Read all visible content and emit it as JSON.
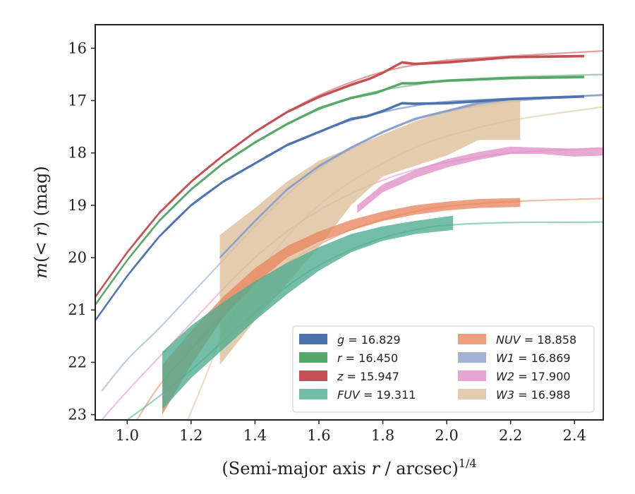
{
  "chart_data": {
    "type": "line",
    "xlabel": "(Semi-major axis r / arcsec)^(1/4)",
    "xlabel_main": "(Semi-major axis ",
    "xlabel_var": "r",
    "xlabel_rest": " / arcsec)",
    "xlabel_sup": "1/4",
    "ylabel": "m(<r) (mag)",
    "ylabel_main": "m",
    "ylabel_paren_open": "(",
    "ylabel_lt": "< ",
    "ylabel_var": "r",
    "ylabel_rest": ") (mag)",
    "xlim": [
      0.9,
      2.49
    ],
    "ylim": [
      23.1,
      15.55
    ],
    "y_inverted": true,
    "xticks": [
      "1.0",
      "1.2",
      "1.4",
      "1.6",
      "1.8",
      "2.0",
      "2.2",
      "2.4"
    ],
    "xtick_values": [
      1.0,
      1.2,
      1.4,
      1.6,
      1.8,
      2.0,
      2.2,
      2.4
    ],
    "yticks": [
      "16",
      "17",
      "18",
      "19",
      "20",
      "21",
      "22",
      "23"
    ],
    "ytick_values": [
      16,
      17,
      18,
      19,
      20,
      21,
      22,
      23
    ],
    "legend_position": "lower-right",
    "series": [
      {
        "band": "g",
        "value": "16.829",
        "color": "#4c72b0",
        "data_band": [
          [
            0.9,
            21.2
          ],
          [
            1.0,
            20.35
          ],
          [
            1.1,
            19.6
          ],
          [
            1.2,
            19.0
          ],
          [
            1.3,
            18.55
          ],
          [
            1.4,
            18.2
          ],
          [
            1.5,
            17.85
          ],
          [
            1.6,
            17.6
          ],
          [
            1.7,
            17.35
          ],
          [
            1.75,
            17.3
          ],
          [
            1.8,
            17.2
          ],
          [
            1.86,
            17.05
          ],
          [
            1.9,
            17.06
          ],
          [
            2.0,
            17.05
          ],
          [
            2.2,
            16.97
          ],
          [
            2.43,
            16.92
          ]
        ],
        "band_width": 0.05,
        "model": [
          [
            0.9,
            21.2
          ],
          [
            1.0,
            20.35
          ],
          [
            1.1,
            19.6
          ],
          [
            1.2,
            19.0
          ],
          [
            1.3,
            18.55
          ],
          [
            1.4,
            18.2
          ],
          [
            1.5,
            17.85
          ],
          [
            1.6,
            17.6
          ],
          [
            1.7,
            17.38
          ],
          [
            1.8,
            17.22
          ],
          [
            1.9,
            17.1
          ],
          [
            2.0,
            17.02
          ],
          [
            2.2,
            16.96
          ],
          [
            2.49,
            16.9
          ]
        ]
      },
      {
        "band": "r",
        "value": "16.450",
        "color": "#55a868",
        "data_band": [
          [
            0.9,
            20.9
          ],
          [
            1.0,
            20.05
          ],
          [
            1.1,
            19.3
          ],
          [
            1.2,
            18.7
          ],
          [
            1.3,
            18.2
          ],
          [
            1.4,
            17.8
          ],
          [
            1.5,
            17.45
          ],
          [
            1.6,
            17.15
          ],
          [
            1.7,
            16.95
          ],
          [
            1.78,
            16.85
          ],
          [
            1.86,
            16.67
          ],
          [
            1.9,
            16.67
          ],
          [
            2.0,
            16.62
          ],
          [
            2.2,
            16.57
          ],
          [
            2.43,
            16.55
          ]
        ],
        "band_width": 0.05,
        "model": [
          [
            0.9,
            20.9
          ],
          [
            1.0,
            20.05
          ],
          [
            1.1,
            19.3
          ],
          [
            1.2,
            18.7
          ],
          [
            1.3,
            18.2
          ],
          [
            1.4,
            17.8
          ],
          [
            1.5,
            17.45
          ],
          [
            1.6,
            17.17
          ],
          [
            1.7,
            16.95
          ],
          [
            1.8,
            16.8
          ],
          [
            1.9,
            16.7
          ],
          [
            2.0,
            16.62
          ],
          [
            2.2,
            16.55
          ],
          [
            2.49,
            16.5
          ]
        ]
      },
      {
        "band": "z",
        "value": "15.947",
        "color": "#c44e52",
        "data_band": [
          [
            0.9,
            20.75
          ],
          [
            1.0,
            19.9
          ],
          [
            1.1,
            19.15
          ],
          [
            1.2,
            18.55
          ],
          [
            1.3,
            18.05
          ],
          [
            1.4,
            17.6
          ],
          [
            1.5,
            17.22
          ],
          [
            1.6,
            16.93
          ],
          [
            1.7,
            16.7
          ],
          [
            1.76,
            16.58
          ],
          [
            1.8,
            16.47
          ],
          [
            1.86,
            16.27
          ],
          [
            1.9,
            16.3
          ],
          [
            2.0,
            16.27
          ],
          [
            2.2,
            16.17
          ],
          [
            2.43,
            16.15
          ]
        ],
        "band_width": 0.05,
        "model": [
          [
            0.9,
            20.75
          ],
          [
            1.0,
            19.9
          ],
          [
            1.1,
            19.15
          ],
          [
            1.2,
            18.55
          ],
          [
            1.3,
            18.05
          ],
          [
            1.4,
            17.6
          ],
          [
            1.5,
            17.22
          ],
          [
            1.6,
            16.9
          ],
          [
            1.7,
            16.65
          ],
          [
            1.8,
            16.45
          ],
          [
            1.9,
            16.32
          ],
          [
            2.0,
            16.23
          ],
          [
            2.2,
            16.15
          ],
          [
            2.49,
            16.05
          ]
        ]
      },
      {
        "band": "FUV",
        "value": "19.311",
        "color": "#4dac8f",
        "data_upper": [
          [
            1.11,
            21.8
          ],
          [
            1.2,
            21.3
          ],
          [
            1.3,
            20.85
          ],
          [
            1.4,
            20.45
          ],
          [
            1.5,
            20.1
          ],
          [
            1.6,
            19.8
          ],
          [
            1.7,
            19.55
          ],
          [
            1.8,
            19.4
          ],
          [
            1.9,
            19.3
          ],
          [
            2.02,
            19.2
          ]
        ],
        "data_lower": [
          [
            1.11,
            22.9
          ],
          [
            1.2,
            22.3
          ],
          [
            1.3,
            21.75
          ],
          [
            1.4,
            21.2
          ],
          [
            1.5,
            20.7
          ],
          [
            1.6,
            20.25
          ],
          [
            1.7,
            19.9
          ],
          [
            1.8,
            19.68
          ],
          [
            1.9,
            19.55
          ],
          [
            2.02,
            19.47
          ]
        ],
        "model": [
          [
            1.0,
            23.1
          ],
          [
            1.1,
            22.65
          ],
          [
            1.2,
            22.15
          ],
          [
            1.3,
            21.6
          ],
          [
            1.4,
            21.05
          ],
          [
            1.5,
            20.55
          ],
          [
            1.6,
            20.15
          ],
          [
            1.7,
            19.85
          ],
          [
            1.8,
            19.62
          ],
          [
            1.9,
            19.47
          ],
          [
            2.0,
            19.38
          ],
          [
            2.2,
            19.33
          ],
          [
            2.49,
            19.32
          ]
        ]
      },
      {
        "band": "NUV",
        "value": "18.858",
        "color": "#e8875f",
        "data_upper": [
          [
            1.11,
            22.05
          ],
          [
            1.2,
            21.4
          ],
          [
            1.3,
            20.75
          ],
          [
            1.4,
            20.2
          ],
          [
            1.5,
            19.78
          ],
          [
            1.6,
            19.5
          ],
          [
            1.7,
            19.28
          ],
          [
            1.8,
            19.12
          ],
          [
            1.9,
            19.0
          ],
          [
            2.0,
            18.93
          ],
          [
            2.1,
            18.88
          ],
          [
            2.23,
            18.86
          ]
        ],
        "data_lower": [
          [
            1.11,
            23.0
          ],
          [
            1.2,
            22.05
          ],
          [
            1.3,
            21.15
          ],
          [
            1.4,
            20.5
          ],
          [
            1.5,
            20.0
          ],
          [
            1.6,
            19.7
          ],
          [
            1.7,
            19.48
          ],
          [
            1.8,
            19.3
          ],
          [
            1.9,
            19.18
          ],
          [
            2.0,
            19.1
          ],
          [
            2.1,
            19.05
          ],
          [
            2.23,
            19.03
          ]
        ],
        "model": [
          [
            1.03,
            23.1
          ],
          [
            1.1,
            22.45
          ],
          [
            1.2,
            21.75
          ],
          [
            1.3,
            21.1
          ],
          [
            1.4,
            20.55
          ],
          [
            1.5,
            20.1
          ],
          [
            1.6,
            19.75
          ],
          [
            1.7,
            19.47
          ],
          [
            1.8,
            19.27
          ],
          [
            1.9,
            19.12
          ],
          [
            2.0,
            19.02
          ],
          [
            2.2,
            18.93
          ],
          [
            2.49,
            18.87
          ]
        ]
      },
      {
        "band": "W1",
        "value": "16.869",
        "color": "#8da0cb",
        "data_band": [
          [
            1.29,
            20.0
          ],
          [
            1.4,
            19.3
          ],
          [
            1.5,
            18.7
          ],
          [
            1.6,
            18.25
          ],
          [
            1.7,
            17.9
          ],
          [
            1.8,
            17.6
          ],
          [
            1.9,
            17.35
          ],
          [
            2.0,
            17.2
          ],
          [
            2.1,
            17.05
          ],
          [
            2.2,
            16.97
          ],
          [
            2.43,
            16.92
          ]
        ],
        "band_width": 0.05,
        "model": [
          [
            0.92,
            22.55
          ],
          [
            1.0,
            21.95
          ],
          [
            1.1,
            21.35
          ],
          [
            1.2,
            20.7
          ],
          [
            1.3,
            20.05
          ],
          [
            1.4,
            19.4
          ],
          [
            1.5,
            18.8
          ],
          [
            1.6,
            18.3
          ],
          [
            1.7,
            17.92
          ],
          [
            1.8,
            17.6
          ],
          [
            1.9,
            17.37
          ],
          [
            2.0,
            17.2
          ],
          [
            2.2,
            17.02
          ],
          [
            2.49,
            16.88
          ]
        ]
      },
      {
        "band": "W2",
        "value": "17.900",
        "color": "#e08fc7",
        "data_upper": [
          [
            1.72,
            19.0
          ],
          [
            1.8,
            18.6
          ],
          [
            1.9,
            18.33
          ],
          [
            2.0,
            18.12
          ],
          [
            2.1,
            17.98
          ],
          [
            2.2,
            17.88
          ],
          [
            2.3,
            17.9
          ],
          [
            2.4,
            17.92
          ],
          [
            2.49,
            17.9
          ]
        ],
        "data_lower": [
          [
            1.72,
            19.15
          ],
          [
            1.8,
            18.75
          ],
          [
            1.9,
            18.48
          ],
          [
            2.0,
            18.28
          ],
          [
            2.1,
            18.13
          ],
          [
            2.2,
            18.02
          ],
          [
            2.3,
            18.02
          ],
          [
            2.4,
            18.07
          ],
          [
            2.49,
            18.05
          ]
        ],
        "model": [
          [
            0.92,
            23.1
          ],
          [
            1.0,
            22.55
          ],
          [
            1.1,
            21.9
          ],
          [
            1.2,
            21.25
          ],
          [
            1.3,
            20.6
          ],
          [
            1.4,
            20.0
          ],
          [
            1.5,
            19.5
          ],
          [
            1.6,
            19.1
          ],
          [
            1.7,
            18.78
          ],
          [
            1.8,
            18.52
          ],
          [
            1.9,
            18.32
          ],
          [
            2.0,
            18.18
          ],
          [
            2.2,
            18.0
          ],
          [
            2.49,
            17.9
          ]
        ]
      },
      {
        "band": "W3",
        "value": "16.988",
        "color": "#dcbf98",
        "data_upper": [
          [
            1.29,
            19.57
          ],
          [
            1.4,
            19.05
          ],
          [
            1.5,
            18.55
          ],
          [
            1.6,
            18.15
          ],
          [
            1.7,
            17.9
          ],
          [
            1.8,
            17.65
          ],
          [
            1.9,
            17.4
          ],
          [
            2.0,
            17.2
          ],
          [
            2.1,
            17.0
          ],
          [
            2.23,
            16.95
          ]
        ],
        "data_lower": [
          [
            1.29,
            22.05
          ],
          [
            1.4,
            21.2
          ],
          [
            1.5,
            20.5
          ],
          [
            1.6,
            19.8
          ],
          [
            1.7,
            19.0
          ],
          [
            1.8,
            18.45
          ],
          [
            1.9,
            18.25
          ],
          [
            2.0,
            18.05
          ],
          [
            2.1,
            17.75
          ],
          [
            2.23,
            17.75
          ]
        ],
        "model": [
          [
            1.19,
            23.1
          ],
          [
            1.25,
            22.2
          ],
          [
            1.3,
            21.45
          ],
          [
            1.4,
            20.4
          ],
          [
            1.5,
            19.6
          ],
          [
            1.6,
            19.0
          ],
          [
            1.7,
            18.55
          ],
          [
            1.8,
            18.2
          ],
          [
            1.9,
            17.9
          ],
          [
            2.0,
            17.68
          ],
          [
            2.2,
            17.38
          ],
          [
            2.49,
            17.12
          ]
        ]
      }
    ]
  }
}
